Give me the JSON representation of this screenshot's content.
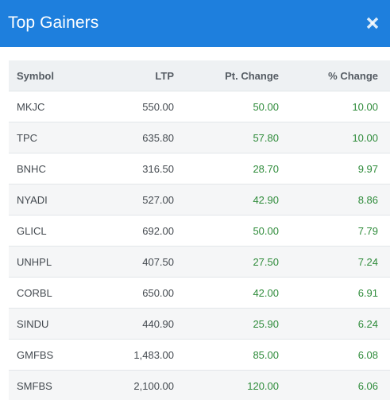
{
  "modal": {
    "title": "Top Gainers"
  },
  "table": {
    "headers": {
      "symbol": "Symbol",
      "ltp": "LTP",
      "pt_change": "Pt. Change",
      "pct_change": "% Change"
    },
    "rows": [
      {
        "symbol": "MKJC",
        "ltp": "550.00",
        "pt_change": "50.00",
        "pct_change": "10.00"
      },
      {
        "symbol": "TPC",
        "ltp": "635.80",
        "pt_change": "57.80",
        "pct_change": "10.00"
      },
      {
        "symbol": "BNHC",
        "ltp": "316.50",
        "pt_change": "28.70",
        "pct_change": "9.97"
      },
      {
        "symbol": "NYADI",
        "ltp": "527.00",
        "pt_change": "42.90",
        "pct_change": "8.86"
      },
      {
        "symbol": "GLICL",
        "ltp": "692.00",
        "pt_change": "50.00",
        "pct_change": "7.79"
      },
      {
        "symbol": "UNHPL",
        "ltp": "407.50",
        "pt_change": "27.50",
        "pct_change": "7.24"
      },
      {
        "symbol": "CORBL",
        "ltp": "650.00",
        "pt_change": "42.00",
        "pct_change": "6.91"
      },
      {
        "symbol": "SINDU",
        "ltp": "440.90",
        "pt_change": "25.90",
        "pct_change": "6.24"
      },
      {
        "symbol": "GMFBS",
        "ltp": "1,483.00",
        "pt_change": "85.00",
        "pct_change": "6.08"
      },
      {
        "symbol": "SMFBS",
        "ltp": "2,100.00",
        "pt_change": "120.00",
        "pct_change": "6.06"
      }
    ]
  },
  "colors": {
    "header_bg": "#1e7fdd",
    "positive": "#2e8b3a",
    "table_head_bg": "#eef1f3"
  },
  "icons": {
    "close": "close-icon"
  }
}
